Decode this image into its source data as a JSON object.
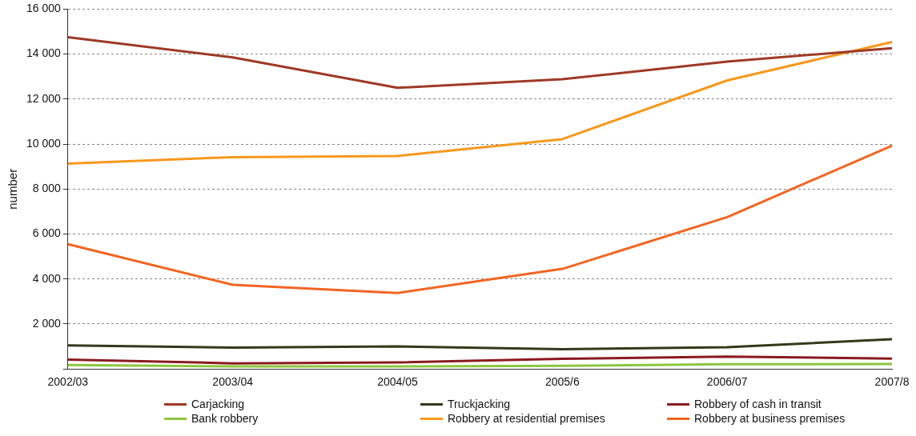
{
  "chart_data": {
    "type": "line",
    "ylabel": "number",
    "categories": [
      "2002/03",
      "2003/04",
      "2004/05",
      "2005/6",
      "2006/07",
      "2007/8"
    ],
    "series": [
      {
        "name": "Carjacking",
        "color": "#9e3a26",
        "values": [
          14750,
          13850,
          12500,
          12880,
          13670,
          14260
        ]
      },
      {
        "name": "Truckjacking",
        "color": "#333a19",
        "values": [
          1050,
          950,
          1000,
          880,
          970,
          1320
        ]
      },
      {
        "name": "Robbery of cash in transit",
        "color": "#8b1a1f",
        "values": [
          420,
          250,
          290,
          450,
          550,
          460
        ]
      },
      {
        "name": "Bank robbery",
        "color": "#8dc63f",
        "values": [
          180,
          110,
          110,
          140,
          210,
          220
        ]
      },
      {
        "name": "Robbery at residential premises",
        "color": "#f7981d",
        "values": [
          9130,
          9420,
          9470,
          10220,
          12830,
          14540
        ]
      },
      {
        "name": "Robbery at business premises",
        "color": "#f26522",
        "values": [
          5550,
          3740,
          3380,
          4450,
          6750,
          9930
        ]
      }
    ],
    "ylim": [
      0,
      16000
    ],
    "yticks": [
      {
        "value": 0,
        "label": null
      },
      {
        "value": 2000,
        "label": "2 000"
      },
      {
        "value": 4000,
        "label": "4 000"
      },
      {
        "value": 6000,
        "label": "6 000"
      },
      {
        "value": 8000,
        "label": "8 000"
      },
      {
        "value": 10000,
        "label": "10 000"
      },
      {
        "value": 12000,
        "label": "12 000"
      },
      {
        "value": 14000,
        "label": "14 000"
      },
      {
        "value": 16000,
        "label": "16 000"
      }
    ],
    "grid": "y",
    "legend": "bottom",
    "marker": "none",
    "line_style": "solid"
  }
}
